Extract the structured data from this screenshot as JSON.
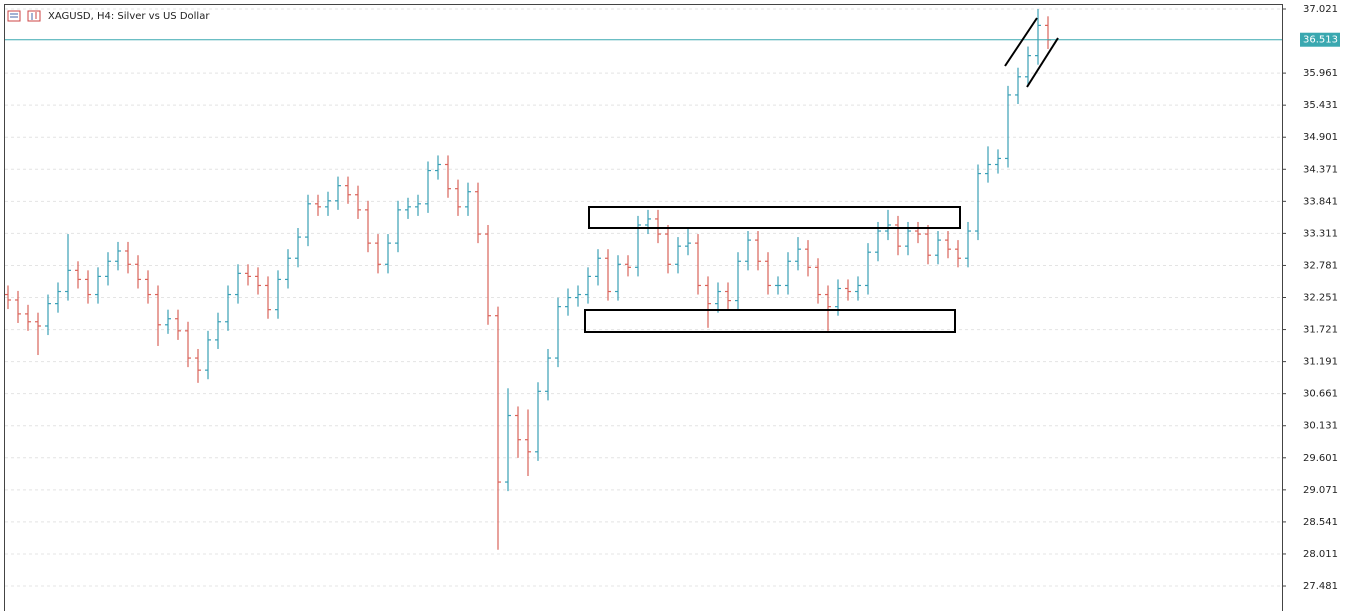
{
  "chart_data": {
    "type": "ohlc",
    "title": "XAGUSD, H4:  Silver vs US Dollar",
    "open": [
      32.3,
      32.21,
      31.98,
      31.85,
      31.78,
      32.15,
      32.35,
      32.7,
      32.55,
      32.3,
      32.6,
      32.85,
      33.02,
      32.8,
      32.55,
      32.3,
      31.8,
      31.9,
      31.7,
      31.25,
      31.05,
      31.55,
      31.85,
      32.3,
      32.65,
      32.6,
      32.45,
      32.05,
      32.55,
      32.9,
      33.25,
      33.8,
      33.75,
      33.85,
      34.1,
      33.95,
      33.7,
      33.15,
      32.8,
      33.15,
      33.7,
      33.75,
      33.8,
      34.35,
      34.45,
      34.05,
      33.75,
      34.0,
      33.3,
      31.95,
      29.2,
      30.3,
      29.9,
      29.7,
      30.7,
      31.25,
      32.1,
      32.25,
      32.3,
      32.6,
      32.9,
      32.35,
      32.8,
      32.75,
      33.45,
      33.55,
      33.3,
      32.8,
      33.1,
      33.15,
      32.45,
      32.15,
      32.35,
      32.2,
      32.85,
      33.2,
      32.85,
      32.45,
      32.45,
      32.85,
      33.05,
      32.75,
      32.3,
      32.1,
      32.4,
      32.35,
      32.45,
      33.0,
      33.35,
      33.45,
      33.1,
      33.35,
      33.3,
      32.95,
      33.2,
      33.05,
      32.9,
      33.35,
      34.3,
      34.45,
      34.55,
      35.6,
      35.9,
      36.25,
      36.75
    ],
    "high": [
      32.45,
      32.36,
      32.13,
      32.0,
      32.3,
      32.5,
      33.3,
      32.85,
      32.7,
      32.75,
      33.0,
      33.17,
      33.17,
      32.95,
      32.7,
      32.45,
      32.05,
      32.05,
      31.85,
      31.4,
      31.7,
      32.0,
      32.45,
      32.8,
      32.8,
      32.75,
      32.6,
      32.7,
      33.05,
      33.4,
      33.95,
      33.95,
      34.0,
      34.25,
      34.25,
      34.1,
      33.85,
      33.3,
      33.3,
      33.85,
      33.9,
      33.95,
      34.5,
      34.6,
      34.6,
      34.2,
      34.15,
      34.15,
      33.45,
      32.1,
      30.75,
      30.45,
      30.4,
      30.85,
      31.4,
      32.25,
      32.4,
      32.45,
      32.75,
      33.05,
      33.05,
      32.95,
      32.95,
      33.6,
      33.7,
      33.7,
      33.45,
      33.25,
      33.4,
      33.3,
      32.6,
      32.5,
      32.5,
      33.0,
      33.35,
      33.35,
      33.0,
      32.6,
      33.0,
      33.25,
      33.2,
      32.9,
      32.45,
      32.55,
      32.55,
      32.6,
      33.15,
      33.5,
      33.7,
      33.6,
      33.5,
      33.5,
      33.45,
      33.35,
      33.35,
      33.2,
      33.5,
      34.45,
      34.75,
      34.7,
      35.75,
      36.05,
      36.4,
      37.02,
      36.9
    ],
    "low": [
      32.06,
      31.83,
      31.7,
      31.3,
      31.63,
      32.0,
      32.2,
      32.4,
      32.15,
      32.15,
      32.45,
      32.7,
      32.65,
      32.4,
      32.15,
      31.45,
      31.65,
      31.55,
      31.1,
      30.84,
      30.9,
      31.4,
      31.7,
      32.15,
      32.45,
      32.3,
      31.9,
      31.9,
      32.4,
      32.75,
      33.1,
      33.6,
      33.6,
      33.7,
      33.8,
      33.55,
      33.0,
      32.65,
      32.65,
      33.0,
      33.55,
      33.6,
      33.65,
      34.2,
      33.9,
      33.6,
      33.6,
      33.15,
      31.8,
      28.08,
      29.05,
      29.6,
      29.3,
      29.55,
      30.55,
      31.1,
      31.95,
      32.1,
      32.15,
      32.45,
      32.2,
      32.2,
      32.6,
      32.6,
      33.3,
      33.15,
      32.65,
      32.65,
      32.95,
      32.3,
      31.75,
      32.0,
      32.05,
      32.05,
      32.7,
      32.7,
      32.3,
      32.3,
      32.3,
      32.7,
      32.6,
      32.15,
      31.7,
      31.95,
      32.2,
      32.2,
      32.3,
      32.85,
      33.2,
      32.95,
      32.95,
      33.15,
      32.8,
      32.8,
      32.9,
      32.75,
      32.75,
      33.2,
      34.15,
      34.3,
      34.4,
      35.45,
      35.75,
      36.1,
      36.36
    ],
    "close": [
      32.21,
      31.98,
      31.85,
      31.78,
      32.15,
      32.35,
      32.7,
      32.55,
      32.3,
      32.6,
      32.85,
      33.02,
      32.8,
      32.55,
      32.3,
      31.8,
      31.9,
      31.7,
      31.25,
      31.05,
      31.55,
      31.85,
      32.3,
      32.65,
      32.6,
      32.45,
      32.05,
      32.55,
      32.9,
      33.25,
      33.8,
      33.75,
      33.85,
      34.1,
      33.95,
      33.7,
      33.15,
      32.8,
      33.15,
      33.7,
      33.75,
      33.8,
      34.35,
      34.45,
      34.05,
      33.75,
      34.0,
      33.3,
      31.95,
      29.2,
      30.3,
      29.9,
      29.7,
      30.7,
      31.25,
      32.1,
      32.25,
      32.3,
      32.6,
      32.9,
      32.35,
      32.8,
      32.75,
      33.45,
      33.55,
      33.3,
      32.8,
      33.1,
      33.15,
      32.45,
      32.15,
      32.35,
      32.2,
      32.85,
      33.2,
      32.85,
      32.45,
      32.45,
      32.85,
      33.05,
      32.75,
      32.3,
      32.1,
      32.4,
      32.35,
      32.45,
      33.0,
      33.35,
      33.45,
      33.1,
      33.35,
      33.3,
      32.95,
      33.2,
      33.05,
      32.9,
      33.35,
      34.3,
      34.45,
      34.55,
      35.6,
      35.9,
      36.25,
      36.75,
      36.51
    ],
    "up_color": "#3a9fb5",
    "down_color": "#d9635a",
    "ylim": [
      27.068,
      37.087
    ],
    "yticks": [
      37.021,
      35.961,
      35.431,
      34.901,
      34.371,
      33.841,
      33.311,
      32.781,
      32.251,
      31.721,
      31.191,
      30.661,
      30.131,
      29.601,
      29.071,
      28.541,
      28.011,
      27.481
    ],
    "grid": true,
    "last_price": 36.513,
    "last_price_color": "#3aa8b0"
  }
}
